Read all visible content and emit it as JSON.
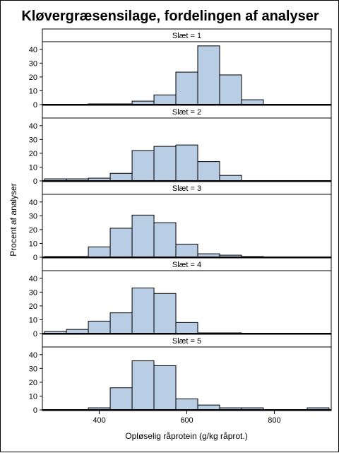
{
  "chart_data": {
    "type": "bar",
    "title": "Kløvergræsensilage, fordelingen af analyser",
    "xlabel": "Opløselig råprotein (g/kg råprot.)",
    "ylabel": "Procent af analyser",
    "xlim": [
      270,
      930
    ],
    "ylim": [
      0,
      45
    ],
    "xticks": [
      400,
      600,
      800
    ],
    "yticks": [
      0,
      10,
      20,
      30,
      40
    ],
    "bin_width": 50,
    "bin_starts": [
      275,
      325,
      375,
      425,
      475,
      525,
      575,
      625,
      675,
      725,
      775,
      825,
      875
    ],
    "bar_color": "#b9cde5",
    "grid": false,
    "panels": [
      {
        "label": "Slæt = 1",
        "values": [
          0.1,
          0.1,
          0.5,
          0.5,
          2.5,
          7,
          23.5,
          42.5,
          21.5,
          3.5,
          0,
          0,
          0
        ]
      },
      {
        "label": "Slæt = 2",
        "values": [
          1.5,
          1.5,
          2,
          5.5,
          22,
          25,
          26,
          14,
          4,
          0,
          0,
          0,
          0
        ]
      },
      {
        "label": "Slæt = 3",
        "values": [
          0.5,
          0.5,
          7.5,
          21,
          30.5,
          25,
          9.5,
          2.5,
          1.5,
          0.5,
          0,
          0,
          0
        ]
      },
      {
        "label": "Slæt = 4",
        "values": [
          1.5,
          3,
          9,
          15,
          33,
          29,
          8,
          0.5,
          0.5,
          0,
          0,
          0,
          0
        ]
      },
      {
        "label": "Slæt = 5",
        "values": [
          0,
          0,
          1.5,
          16,
          35.5,
          32,
          8,
          3.5,
          1.5,
          1.5,
          0,
          0,
          1.5
        ]
      }
    ]
  }
}
